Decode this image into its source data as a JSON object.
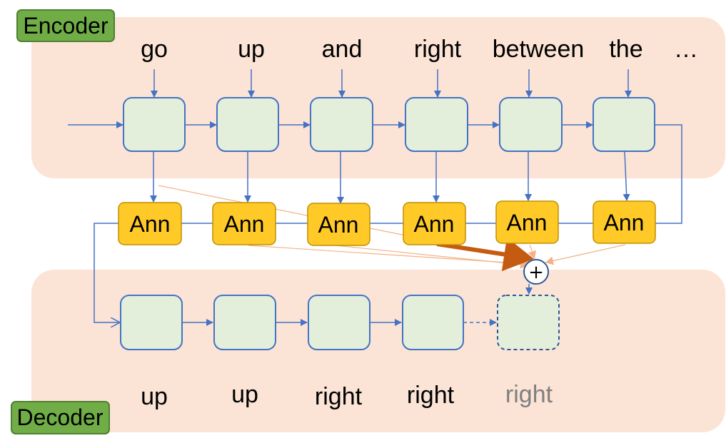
{
  "encoder": {
    "label": "Encoder",
    "words": [
      "go",
      "up",
      "and",
      "right",
      "between",
      "the",
      "…"
    ]
  },
  "annotations": {
    "label": "Ann",
    "count": 6
  },
  "combiner": {
    "symbol": "+"
  },
  "decoder": {
    "label": "Decoder",
    "words": [
      "up",
      "up",
      "right",
      "right",
      "right"
    ],
    "pending_word_index": 4
  },
  "colors": {
    "region_fill": "#fbe4d6",
    "cell_fill": "#e3efda",
    "cell_stroke": "#4472c4",
    "annotation_fill": "#ffca28",
    "tag_fill": "#70ad47",
    "attention_weak": "#f4b183",
    "attention_strong": "#c55a11",
    "pending_text": "#7f7f7f"
  }
}
